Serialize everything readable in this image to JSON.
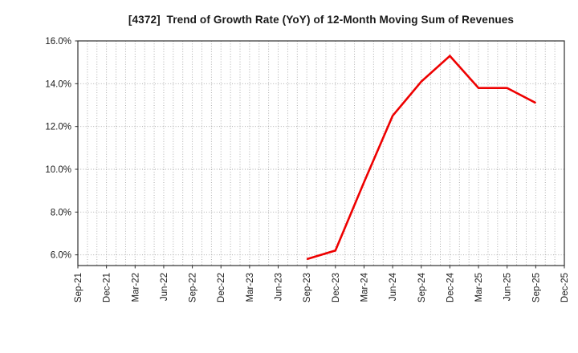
{
  "chart_data": {
    "type": "line",
    "title": "[4372]  Trend of Growth Rate (YoY) of 12-Month Moving Sum of Revenues",
    "xlabel": "",
    "ylabel": "",
    "x_categories": [
      "Sep-21",
      "Dec-21",
      "Mar-22",
      "Jun-22",
      "Sep-22",
      "Dec-22",
      "Mar-23",
      "Jun-23",
      "Sep-23",
      "Dec-23",
      "Mar-24",
      "Jun-24",
      "Sep-24",
      "Dec-24",
      "Mar-25",
      "Jun-25",
      "Sep-25",
      "Dec-25"
    ],
    "y_ticks": [
      6,
      8,
      10,
      12,
      14,
      16
    ],
    "y_tick_labels": [
      "6.0%",
      "8.0%",
      "10.0%",
      "12.0%",
      "14.0%",
      "16.0%"
    ],
    "ylim": [
      5.5,
      16.0
    ],
    "grid": {
      "style": "dotted",
      "vertical": "monthly",
      "horizontal": "every 2%"
    },
    "legend_position": "none",
    "series": [
      {
        "color": "#ee0000",
        "points": [
          {
            "x": "Sep-23",
            "y": 5.8
          },
          {
            "x": "Dec-23",
            "y": 6.2
          },
          {
            "x": "Mar-24",
            "y": 9.4
          },
          {
            "x": "Jun-24",
            "y": 12.5
          },
          {
            "x": "Sep-24",
            "y": 14.1
          },
          {
            "x": "Dec-24",
            "y": 15.3
          },
          {
            "x": "Mar-25",
            "y": 13.8
          },
          {
            "x": "Jun-25",
            "y": 13.8
          },
          {
            "x": "Sep-25",
            "y": 13.1
          }
        ]
      }
    ]
  },
  "colors": {
    "line": "#ee0000",
    "grid": "#a6a6a6",
    "axis": "#2f2f2f",
    "text": "#1a1a1a",
    "background": "#ffffff"
  }
}
